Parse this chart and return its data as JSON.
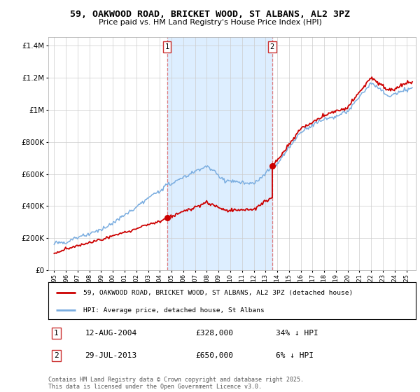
{
  "title": "59, OAKWOOD ROAD, BRICKET WOOD, ST ALBANS, AL2 3PZ",
  "subtitle": "Price paid vs. HM Land Registry's House Price Index (HPI)",
  "legend_line1": "59, OAKWOOD ROAD, BRICKET WOOD, ST ALBANS, AL2 3PZ (detached house)",
  "legend_line2": "HPI: Average price, detached house, St Albans",
  "footnote": "Contains HM Land Registry data © Crown copyright and database right 2025.\nThis data is licensed under the Open Government Licence v3.0.",
  "sale1_label": "1",
  "sale1_date": "12-AUG-2004",
  "sale1_price": "£328,000",
  "sale1_hpi": "34% ↓ HPI",
  "sale2_label": "2",
  "sale2_date": "29-JUL-2013",
  "sale2_price": "£650,000",
  "sale2_hpi": "6% ↓ HPI",
  "sale1_x": 2004.62,
  "sale1_y": 328000,
  "sale2_x": 2013.57,
  "sale2_y": 650000,
  "red_color": "#cc0000",
  "blue_color": "#7aade0",
  "shade_color": "#ddeeff",
  "dashed_color": "#dd6666",
  "background_color": "#ffffff",
  "grid_color": "#cccccc",
  "ylim": [
    0,
    1450000
  ],
  "xlim": [
    1994.5,
    2025.8
  ],
  "yticks": [
    0,
    200000,
    400000,
    600000,
    800000,
    1000000,
    1200000,
    1400000
  ]
}
